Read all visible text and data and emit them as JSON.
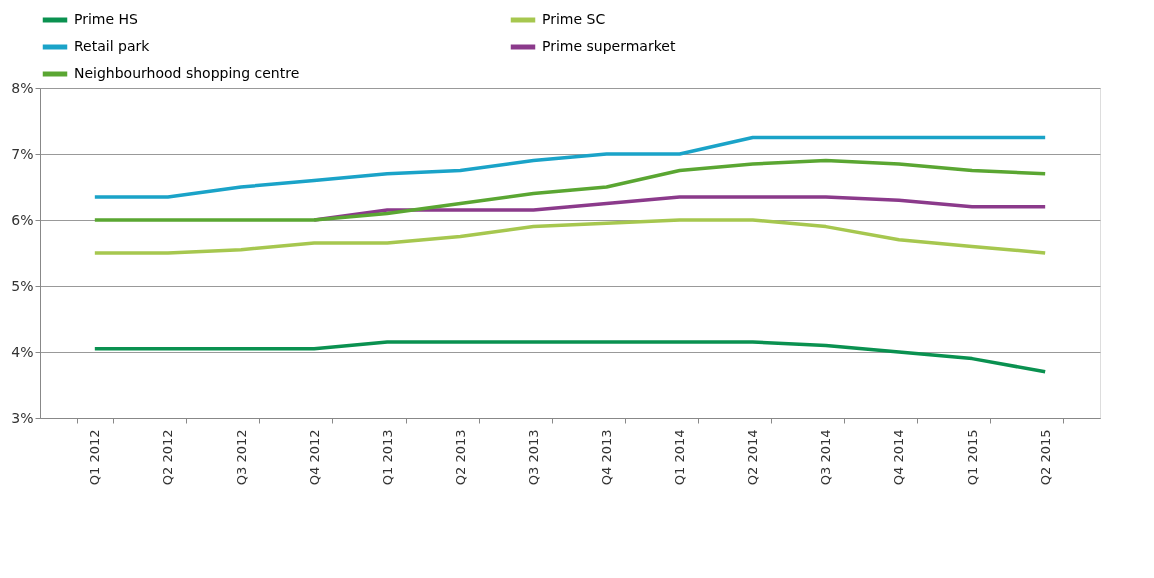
{
  "chart_data": {
    "type": "line",
    "categories": [
      "Q1 2012",
      "Q2 2012",
      "Q3 2012",
      "Q4 2012",
      "Q1 2013",
      "Q2 2013",
      "Q3 2013",
      "Q4 2013",
      "Q1 2014",
      "Q2 2014",
      "Q3 2014",
      "Q4 2014",
      "Q1 2015",
      "Q2 2015"
    ],
    "series": [
      {
        "name": "Prime HS",
        "color": "#0a9150",
        "values": [
          4.05,
          4.05,
          4.05,
          4.05,
          4.15,
          4.15,
          4.15,
          4.15,
          4.15,
          4.15,
          4.1,
          4.0,
          3.9,
          3.7
        ]
      },
      {
        "name": "Prime SC",
        "color": "#a6c74f",
        "values": [
          5.5,
          5.5,
          5.55,
          5.65,
          5.65,
          5.75,
          5.9,
          5.95,
          6.0,
          6.0,
          5.9,
          5.7,
          5.6,
          5.5
        ]
      },
      {
        "name": "Retail park",
        "color": "#1aa3c8",
        "values": [
          6.35,
          6.35,
          6.5,
          6.6,
          6.7,
          6.75,
          6.9,
          7.0,
          7.0,
          7.25,
          7.25,
          7.25,
          7.25,
          7.25
        ]
      },
      {
        "name": "Prime supermarket",
        "color": "#8b3a8b",
        "values": [
          null,
          null,
          null,
          6.0,
          6.15,
          6.15,
          6.15,
          6.25,
          6.35,
          6.35,
          6.35,
          6.3,
          6.2,
          6.2
        ]
      },
      {
        "name": "Neighbourhood shopping centre",
        "color": "#5aa632",
        "values": [
          6.0,
          6.0,
          6.0,
          6.0,
          6.1,
          6.25,
          6.4,
          6.5,
          6.75,
          6.85,
          6.9,
          6.85,
          6.75,
          6.7
        ]
      }
    ],
    "ylim": [
      3,
      8
    ],
    "yticks": [
      {
        "value": 3,
        "label": "3%"
      },
      {
        "value": 4,
        "label": "4%"
      },
      {
        "value": 5,
        "label": "5%"
      },
      {
        "value": 6,
        "label": "6%"
      },
      {
        "value": 7,
        "label": "7%"
      },
      {
        "value": 8,
        "label": "8%"
      }
    ],
    "grid": "y",
    "legend": "top",
    "marker": "none",
    "line_style": "solid"
  }
}
